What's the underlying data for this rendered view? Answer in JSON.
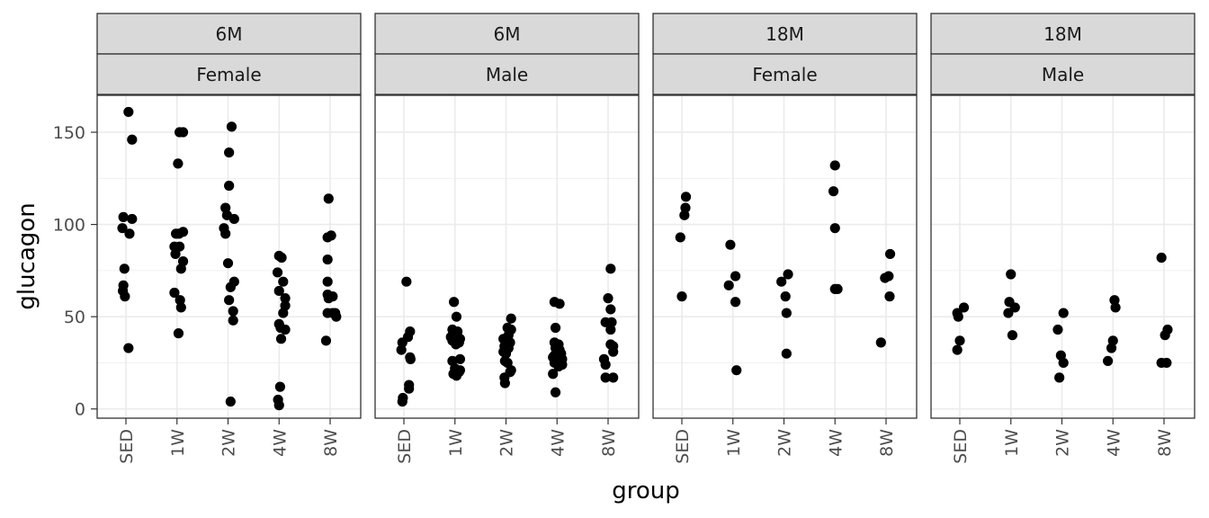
{
  "chart_data": {
    "type": "scatter",
    "xlabel": "group",
    "ylabel": "glucagon",
    "categories": [
      "SED",
      "1W",
      "2W",
      "4W",
      "8W"
    ],
    "ylim": [
      -5,
      170
    ],
    "y_ticks": [
      0,
      50,
      100,
      150
    ],
    "y_tick_labels": [
      "0",
      "50",
      "100",
      "150"
    ],
    "grid": true,
    "point_color": "#000000",
    "facets": [
      {
        "strip_top": "6M",
        "strip_bottom": "Female",
        "points": [
          {
            "x": "SED",
            "jitter": 0.05,
            "y": 161
          },
          {
            "x": "SED",
            "jitter": 0.12,
            "y": 146
          },
          {
            "x": "SED",
            "jitter": -0.05,
            "y": 104
          },
          {
            "x": "SED",
            "jitter": 0.12,
            "y": 103
          },
          {
            "x": "SED",
            "jitter": -0.07,
            "y": 98
          },
          {
            "x": "SED",
            "jitter": 0.07,
            "y": 95
          },
          {
            "x": "SED",
            "jitter": -0.03,
            "y": 76
          },
          {
            "x": "SED",
            "jitter": -0.05,
            "y": 67
          },
          {
            "x": "SED",
            "jitter": -0.06,
            "y": 64
          },
          {
            "x": "SED",
            "jitter": -0.02,
            "y": 61
          },
          {
            "x": "SED",
            "jitter": 0.05,
            "y": 33
          },
          {
            "x": "1W",
            "jitter": 0.05,
            "y": 150
          },
          {
            "x": "1W",
            "jitter": 0.12,
            "y": 150
          },
          {
            "x": "1W",
            "jitter": 0.02,
            "y": 133
          },
          {
            "x": "1W",
            "jitter": 0.12,
            "y": 96
          },
          {
            "x": "1W",
            "jitter": -0.02,
            "y": 95
          },
          {
            "x": "1W",
            "jitter": 0.04,
            "y": 95
          },
          {
            "x": "1W",
            "jitter": -0.05,
            "y": 88
          },
          {
            "x": "1W",
            "jitter": 0.05,
            "y": 88
          },
          {
            "x": "1W",
            "jitter": -0.03,
            "y": 84
          },
          {
            "x": "1W",
            "jitter": 0.12,
            "y": 80
          },
          {
            "x": "1W",
            "jitter": 0.08,
            "y": 76
          },
          {
            "x": "1W",
            "jitter": -0.05,
            "y": 63
          },
          {
            "x": "1W",
            "jitter": 0.06,
            "y": 59
          },
          {
            "x": "1W",
            "jitter": 0.08,
            "y": 55
          },
          {
            "x": "1W",
            "jitter": 0.03,
            "y": 41
          },
          {
            "x": "2W",
            "jitter": 0.07,
            "y": 153
          },
          {
            "x": "2W",
            "jitter": 0.02,
            "y": 139
          },
          {
            "x": "2W",
            "jitter": 0.02,
            "y": 121
          },
          {
            "x": "2W",
            "jitter": -0.05,
            "y": 109
          },
          {
            "x": "2W",
            "jitter": -0.02,
            "y": 105
          },
          {
            "x": "2W",
            "jitter": 0.12,
            "y": 103
          },
          {
            "x": "2W",
            "jitter": -0.08,
            "y": 98
          },
          {
            "x": "2W",
            "jitter": -0.05,
            "y": 95
          },
          {
            "x": "2W",
            "jitter": 0.0,
            "y": 79
          },
          {
            "x": "2W",
            "jitter": 0.12,
            "y": 69
          },
          {
            "x": "2W",
            "jitter": 0.05,
            "y": 66
          },
          {
            "x": "2W",
            "jitter": 0.02,
            "y": 59
          },
          {
            "x": "2W",
            "jitter": 0.1,
            "y": 53
          },
          {
            "x": "2W",
            "jitter": 0.1,
            "y": 48
          },
          {
            "x": "2W",
            "jitter": 0.05,
            "y": 4
          },
          {
            "x": "4W",
            "jitter": 0.0,
            "y": 83
          },
          {
            "x": "4W",
            "jitter": 0.05,
            "y": 82
          },
          {
            "x": "4W",
            "jitter": -0.03,
            "y": 74
          },
          {
            "x": "4W",
            "jitter": 0.08,
            "y": 69
          },
          {
            "x": "4W",
            "jitter": 0.0,
            "y": 64
          },
          {
            "x": "4W",
            "jitter": 0.12,
            "y": 60
          },
          {
            "x": "4W",
            "jitter": 0.12,
            "y": 56
          },
          {
            "x": "4W",
            "jitter": 0.08,
            "y": 52
          },
          {
            "x": "4W",
            "jitter": 0.0,
            "y": 46
          },
          {
            "x": "4W",
            "jitter": 0.03,
            "y": 44
          },
          {
            "x": "4W",
            "jitter": 0.12,
            "y": 43
          },
          {
            "x": "4W",
            "jitter": 0.04,
            "y": 38
          },
          {
            "x": "4W",
            "jitter": 0.02,
            "y": 12
          },
          {
            "x": "4W",
            "jitter": -0.02,
            "y": 5
          },
          {
            "x": "4W",
            "jitter": 0.0,
            "y": 2
          },
          {
            "x": "8W",
            "jitter": -0.03,
            "y": 114
          },
          {
            "x": "8W",
            "jitter": -0.05,
            "y": 93
          },
          {
            "x": "8W",
            "jitter": 0.02,
            "y": 94
          },
          {
            "x": "8W",
            "jitter": -0.05,
            "y": 81
          },
          {
            "x": "8W",
            "jitter": -0.05,
            "y": 69
          },
          {
            "x": "8W",
            "jitter": -0.05,
            "y": 62
          },
          {
            "x": "8W",
            "jitter": -0.03,
            "y": 60
          },
          {
            "x": "8W",
            "jitter": 0.05,
            "y": 61
          },
          {
            "x": "8W",
            "jitter": -0.05,
            "y": 52
          },
          {
            "x": "8W",
            "jitter": 0.05,
            "y": 52
          },
          {
            "x": "8W",
            "jitter": 0.1,
            "y": 52
          },
          {
            "x": "8W",
            "jitter": 0.12,
            "y": 50
          },
          {
            "x": "8W",
            "jitter": -0.08,
            "y": 37
          }
        ]
      },
      {
        "strip_top": "6M",
        "strip_bottom": "Male",
        "points": [
          {
            "x": "SED",
            "jitter": 0.05,
            "y": 69
          },
          {
            "x": "SED",
            "jitter": 0.12,
            "y": 42
          },
          {
            "x": "SED",
            "jitter": 0.08,
            "y": 39
          },
          {
            "x": "SED",
            "jitter": -0.03,
            "y": 36
          },
          {
            "x": "SED",
            "jitter": -0.05,
            "y": 32
          },
          {
            "x": "SED",
            "jitter": 0.12,
            "y": 28
          },
          {
            "x": "SED",
            "jitter": 0.13,
            "y": 27
          },
          {
            "x": "SED",
            "jitter": 0.1,
            "y": 13
          },
          {
            "x": "SED",
            "jitter": 0.1,
            "y": 11
          },
          {
            "x": "SED",
            "jitter": -0.02,
            "y": 6
          },
          {
            "x": "SED",
            "jitter": -0.03,
            "y": 4
          },
          {
            "x": "1W",
            "jitter": -0.02,
            "y": 58
          },
          {
            "x": "1W",
            "jitter": 0.03,
            "y": 50
          },
          {
            "x": "1W",
            "jitter": -0.05,
            "y": 43
          },
          {
            "x": "1W",
            "jitter": 0.05,
            "y": 42
          },
          {
            "x": "1W",
            "jitter": -0.08,
            "y": 39
          },
          {
            "x": "1W",
            "jitter": 0.1,
            "y": 38
          },
          {
            "x": "1W",
            "jitter": -0.05,
            "y": 37
          },
          {
            "x": "1W",
            "jitter": 0.08,
            "y": 36
          },
          {
            "x": "1W",
            "jitter": 0.02,
            "y": 35
          },
          {
            "x": "1W",
            "jitter": 0.1,
            "y": 27
          },
          {
            "x": "1W",
            "jitter": -0.05,
            "y": 26
          },
          {
            "x": "1W",
            "jitter": 0.0,
            "y": 22
          },
          {
            "x": "1W",
            "jitter": 0.08,
            "y": 20
          },
          {
            "x": "1W",
            "jitter": 0.1,
            "y": 21
          },
          {
            "x": "1W",
            "jitter": -0.03,
            "y": 19
          },
          {
            "x": "1W",
            "jitter": 0.03,
            "y": 18
          },
          {
            "x": "2W",
            "jitter": 0.1,
            "y": 49
          },
          {
            "x": "2W",
            "jitter": 0.03,
            "y": 44
          },
          {
            "x": "2W",
            "jitter": 0.1,
            "y": 43
          },
          {
            "x": "2W",
            "jitter": 0.05,
            "y": 40
          },
          {
            "x": "2W",
            "jitter": -0.05,
            "y": 38
          },
          {
            "x": "2W",
            "jitter": 0.08,
            "y": 36
          },
          {
            "x": "2W",
            "jitter": 0.0,
            "y": 35
          },
          {
            "x": "2W",
            "jitter": -0.03,
            "y": 34
          },
          {
            "x": "2W",
            "jitter": 0.05,
            "y": 33
          },
          {
            "x": "2W",
            "jitter": -0.05,
            "y": 31
          },
          {
            "x": "2W",
            "jitter": 0.0,
            "y": 30
          },
          {
            "x": "2W",
            "jitter": -0.02,
            "y": 26
          },
          {
            "x": "2W",
            "jitter": 0.03,
            "y": 25
          },
          {
            "x": "2W",
            "jitter": 0.08,
            "y": 20
          },
          {
            "x": "2W",
            "jitter": 0.1,
            "y": 21
          },
          {
            "x": "2W",
            "jitter": -0.03,
            "y": 17
          },
          {
            "x": "2W",
            "jitter": -0.02,
            "y": 14
          },
          {
            "x": "4W",
            "jitter": -0.05,
            "y": 58
          },
          {
            "x": "4W",
            "jitter": 0.05,
            "y": 57
          },
          {
            "x": "4W",
            "jitter": -0.03,
            "y": 44
          },
          {
            "x": "4W",
            "jitter": -0.05,
            "y": 36
          },
          {
            "x": "4W",
            "jitter": 0.03,
            "y": 35
          },
          {
            "x": "4W",
            "jitter": -0.03,
            "y": 33
          },
          {
            "x": "4W",
            "jitter": 0.05,
            "y": 32
          },
          {
            "x": "4W",
            "jitter": 0.08,
            "y": 30
          },
          {
            "x": "4W",
            "jitter": -0.05,
            "y": 29
          },
          {
            "x": "4W",
            "jitter": -0.08,
            "y": 28
          },
          {
            "x": "4W",
            "jitter": 0.1,
            "y": 27
          },
          {
            "x": "4W",
            "jitter": 0.03,
            "y": 26
          },
          {
            "x": "4W",
            "jitter": -0.05,
            "y": 25
          },
          {
            "x": "4W",
            "jitter": 0.1,
            "y": 24
          },
          {
            "x": "4W",
            "jitter": 0.03,
            "y": 23
          },
          {
            "x": "4W",
            "jitter": -0.08,
            "y": 19
          },
          {
            "x": "4W",
            "jitter": -0.03,
            "y": 9
          },
          {
            "x": "8W",
            "jitter": 0.05,
            "y": 76
          },
          {
            "x": "8W",
            "jitter": 0.0,
            "y": 60
          },
          {
            "x": "8W",
            "jitter": 0.05,
            "y": 54
          },
          {
            "x": "8W",
            "jitter": -0.05,
            "y": 47
          },
          {
            "x": "8W",
            "jitter": 0.07,
            "y": 47
          },
          {
            "x": "8W",
            "jitter": 0.05,
            "y": 43
          },
          {
            "x": "8W",
            "jitter": 0.05,
            "y": 35
          },
          {
            "x": "8W",
            "jitter": 0.1,
            "y": 34
          },
          {
            "x": "8W",
            "jitter": 0.1,
            "y": 31
          },
          {
            "x": "8W",
            "jitter": -0.08,
            "y": 27
          },
          {
            "x": "8W",
            "jitter": -0.05,
            "y": 24
          },
          {
            "x": "8W",
            "jitter": -0.05,
            "y": 17
          },
          {
            "x": "8W",
            "jitter": 0.1,
            "y": 17
          }
        ]
      },
      {
        "strip_top": "18M",
        "strip_bottom": "Female",
        "points": [
          {
            "x": "SED",
            "jitter": 0.08,
            "y": 115
          },
          {
            "x": "SED",
            "jitter": 0.07,
            "y": 109
          },
          {
            "x": "SED",
            "jitter": 0.05,
            "y": 105
          },
          {
            "x": "SED",
            "jitter": -0.03,
            "y": 93
          },
          {
            "x": "SED",
            "jitter": 0.0,
            "y": 61
          },
          {
            "x": "1W",
            "jitter": -0.05,
            "y": 89
          },
          {
            "x": "1W",
            "jitter": 0.05,
            "y": 72
          },
          {
            "x": "1W",
            "jitter": -0.08,
            "y": 67
          },
          {
            "x": "1W",
            "jitter": 0.05,
            "y": 58
          },
          {
            "x": "1W",
            "jitter": 0.07,
            "y": 21
          },
          {
            "x": "2W",
            "jitter": 0.08,
            "y": 73
          },
          {
            "x": "2W",
            "jitter": -0.05,
            "y": 69
          },
          {
            "x": "2W",
            "jitter": 0.03,
            "y": 61
          },
          {
            "x": "2W",
            "jitter": 0.05,
            "y": 52
          },
          {
            "x": "2W",
            "jitter": 0.05,
            "y": 30
          },
          {
            "x": "4W",
            "jitter": 0.0,
            "y": 132
          },
          {
            "x": "4W",
            "jitter": -0.03,
            "y": 118
          },
          {
            "x": "4W",
            "jitter": 0.0,
            "y": 98
          },
          {
            "x": "4W",
            "jitter": 0.0,
            "y": 65
          },
          {
            "x": "4W",
            "jitter": 0.05,
            "y": 65
          },
          {
            "x": "8W",
            "jitter": 0.08,
            "y": 84
          },
          {
            "x": "8W",
            "jitter": 0.05,
            "y": 72
          },
          {
            "x": "8W",
            "jitter": -0.02,
            "y": 71
          },
          {
            "x": "8W",
            "jitter": 0.07,
            "y": 61
          },
          {
            "x": "8W",
            "jitter": -0.1,
            "y": 36
          }
        ]
      },
      {
        "strip_top": "18M",
        "strip_bottom": "Male",
        "points": [
          {
            "x": "SED",
            "jitter": 0.08,
            "y": 55
          },
          {
            "x": "SED",
            "jitter": -0.05,
            "y": 52
          },
          {
            "x": "SED",
            "jitter": -0.03,
            "y": 50
          },
          {
            "x": "SED",
            "jitter": 0.0,
            "y": 37
          },
          {
            "x": "SED",
            "jitter": -0.05,
            "y": 32
          },
          {
            "x": "1W",
            "jitter": 0.0,
            "y": 73
          },
          {
            "x": "1W",
            "jitter": -0.03,
            "y": 58
          },
          {
            "x": "1W",
            "jitter": 0.08,
            "y": 55
          },
          {
            "x": "1W",
            "jitter": -0.05,
            "y": 52
          },
          {
            "x": "1W",
            "jitter": 0.03,
            "y": 40
          },
          {
            "x": "2W",
            "jitter": 0.03,
            "y": 52
          },
          {
            "x": "2W",
            "jitter": -0.08,
            "y": 43
          },
          {
            "x": "2W",
            "jitter": -0.02,
            "y": 29
          },
          {
            "x": "2W",
            "jitter": 0.03,
            "y": 25
          },
          {
            "x": "2W",
            "jitter": -0.05,
            "y": 17
          },
          {
            "x": "4W",
            "jitter": 0.03,
            "y": 59
          },
          {
            "x": "4W",
            "jitter": 0.05,
            "y": 55
          },
          {
            "x": "4W",
            "jitter": 0.0,
            "y": 37
          },
          {
            "x": "4W",
            "jitter": -0.03,
            "y": 33
          },
          {
            "x": "4W",
            "jitter": -0.1,
            "y": 26
          },
          {
            "x": "8W",
            "jitter": -0.05,
            "y": 82
          },
          {
            "x": "8W",
            "jitter": 0.07,
            "y": 43
          },
          {
            "x": "8W",
            "jitter": 0.02,
            "y": 40
          },
          {
            "x": "8W",
            "jitter": -0.05,
            "y": 25
          },
          {
            "x": "8W",
            "jitter": 0.05,
            "y": 25
          }
        ]
      }
    ]
  }
}
